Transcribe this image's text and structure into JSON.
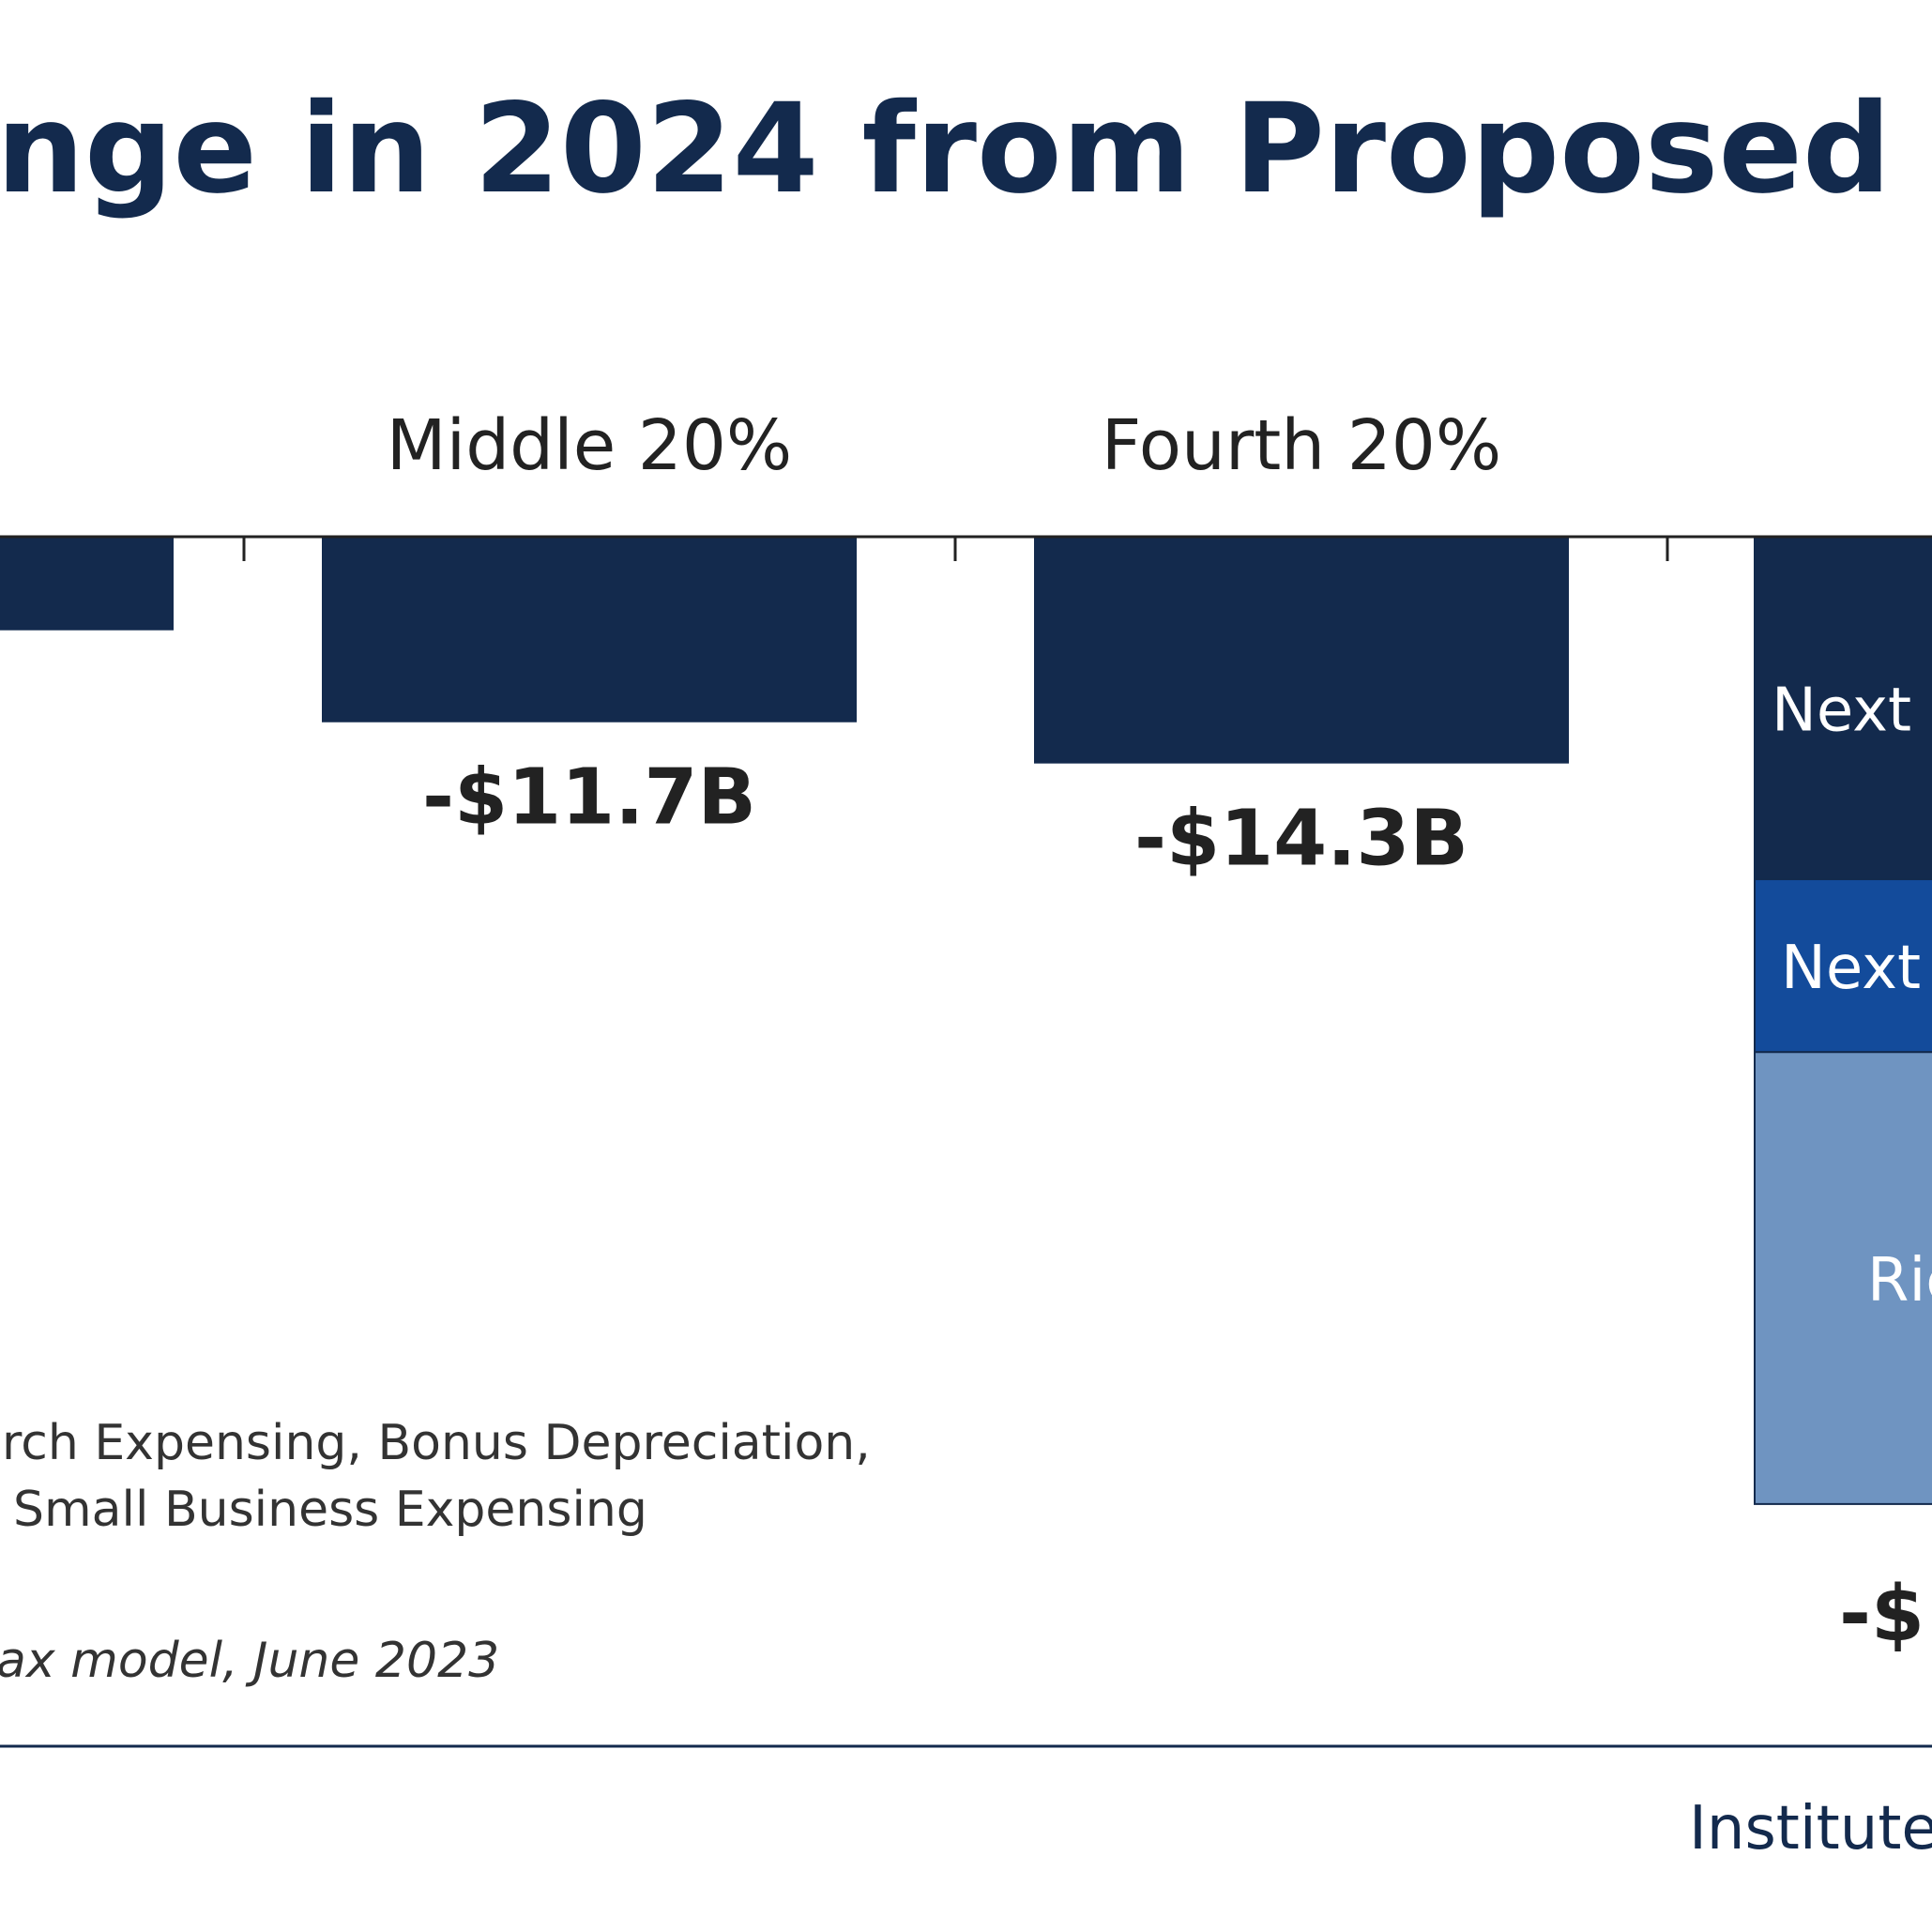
{
  "chart_data": {
    "type": "bar",
    "title": "nge in 2024 from Proposed Hou",
    "categories": [
      "0%",
      "Middle 20%",
      "Fourth 20%",
      "Rich"
    ],
    "values": [
      -5.9,
      -11.7,
      -14.3,
      null
    ],
    "value_labels": [
      "B",
      "-$11.7B",
      "-$14.3B",
      "-$"
    ],
    "stacked": {
      "category": "Rich",
      "segments": [
        {
          "label": "Next I",
          "value": -21.6,
          "color": "#132a4d"
        },
        {
          "label": "Next",
          "value": -10.9,
          "color": "#134b9b"
        },
        {
          "label": "Ric",
          "value": -28.5,
          "color": "#6f94c1"
        }
      ]
    },
    "ylim": [
      -61,
      0
    ],
    "colors": {
      "bar": "#132a4d",
      "axis": "#222222",
      "title": "#132a4d",
      "rule": "#132a4d"
    }
  },
  "notes": {
    "line1": "rch Expensing, Bonus Depreciation,",
    "line2": "Small Business Expensing",
    "source": "ax model, June 2023"
  },
  "footer": {
    "brand": "Institute"
  }
}
